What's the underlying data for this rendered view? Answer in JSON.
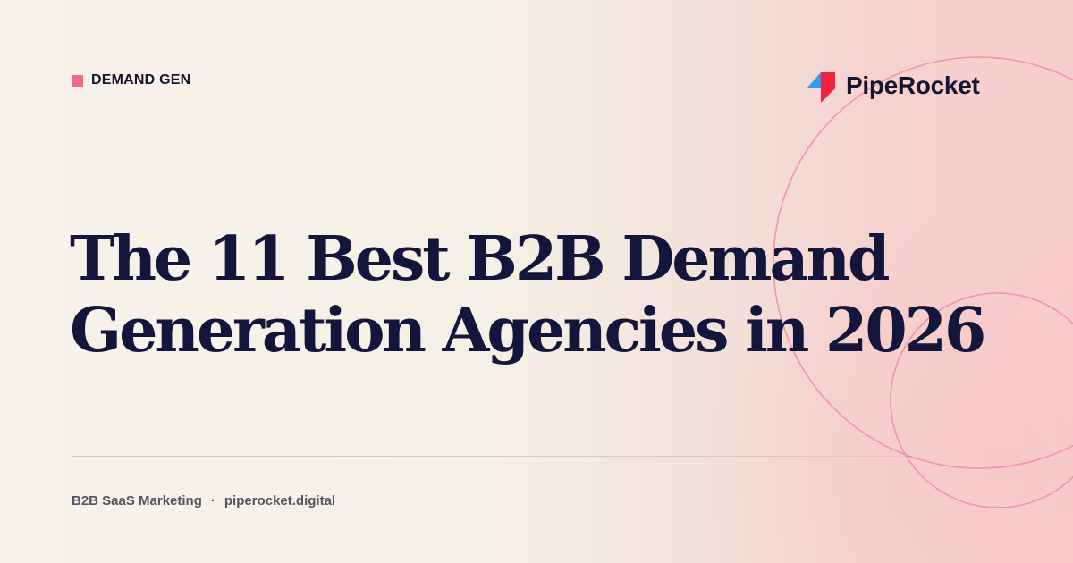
{
  "tag": {
    "label": "DEMAND GEN",
    "color": "#f06b86"
  },
  "brand": {
    "name": "PipeRocket",
    "logo_icon": "piperocket-logo-icon",
    "colors": {
      "red": "#f2243d",
      "blue": "#2f9bf2"
    }
  },
  "headline": {
    "line1": "The 11 Best B2B Demand",
    "line2": "Generation Agencies in 2026"
  },
  "footer": {
    "category": "B2B SaaS Marketing",
    "separator": "·",
    "site": "piperocket.digital"
  },
  "colors": {
    "background_left": "#f7f3ea",
    "background_right": "#f7cdcc",
    "text_dark": "#13163a",
    "text_muted": "#55565e",
    "ring": "#ef8197"
  }
}
